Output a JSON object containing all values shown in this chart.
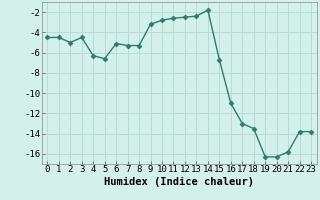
{
  "x": [
    0,
    1,
    2,
    3,
    4,
    5,
    6,
    7,
    8,
    9,
    10,
    11,
    12,
    13,
    14,
    15,
    16,
    17,
    18,
    19,
    20,
    21,
    22,
    23
  ],
  "y": [
    -4.5,
    -4.5,
    -5.0,
    -4.5,
    -6.3,
    -6.6,
    -5.1,
    -5.3,
    -5.3,
    -3.2,
    -2.8,
    -2.6,
    -2.5,
    -2.4,
    -1.8,
    -6.7,
    -11.0,
    -13.0,
    -13.5,
    -16.3,
    -16.3,
    -15.8,
    -13.8,
    -13.8
  ],
  "xlabel": "Humidex (Indice chaleur)",
  "xlim": [
    -0.5,
    23.5
  ],
  "ylim": [
    -17,
    -1
  ],
  "yticks": [
    -16,
    -14,
    -12,
    -10,
    -8,
    -6,
    -4,
    -2
  ],
  "xticks": [
    0,
    1,
    2,
    3,
    4,
    5,
    6,
    7,
    8,
    9,
    10,
    11,
    12,
    13,
    14,
    15,
    16,
    17,
    18,
    19,
    20,
    21,
    22,
    23
  ],
  "line_color": "#2d7d6d",
  "marker": "D",
  "marker_size": 2.5,
  "bg_color": "#d4f0eb",
  "grid_color": "#b8dbd5",
  "xlabel_fontsize": 7.5,
  "tick_fontsize": 6.5
}
